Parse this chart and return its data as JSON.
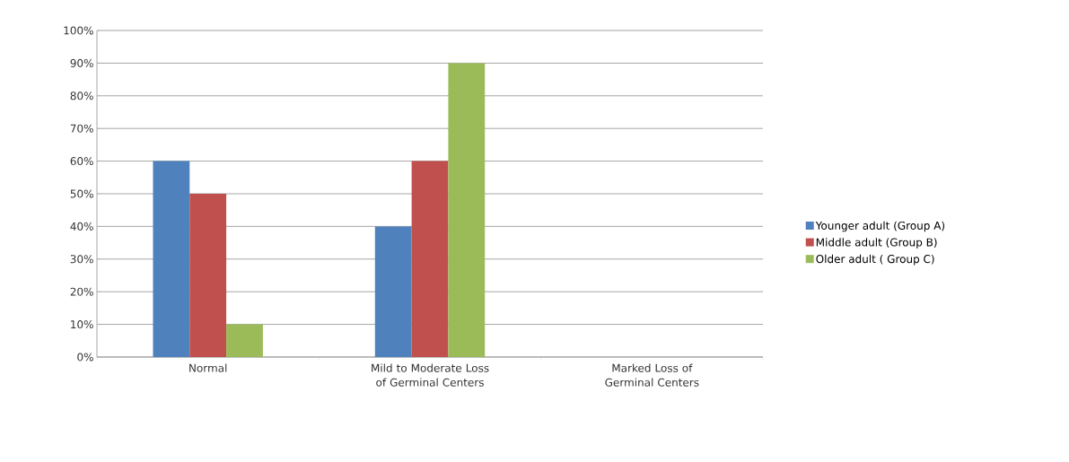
{
  "chart_data": {
    "type": "bar",
    "categories": [
      "Normal",
      "Mild to Moderate Loss of Germinal Centers",
      "Marked Loss of Germinal Centers"
    ],
    "series": [
      {
        "name": "Younger adult (Group A)",
        "color": "#4f81bd",
        "values": [
          60,
          40,
          0
        ]
      },
      {
        "name": "Middle adult (Group B)",
        "color": "#c0504d",
        "values": [
          50,
          60,
          0
        ]
      },
      {
        "name": "Older adult ( Group C)",
        "color": "#9bbb59",
        "values": [
          10,
          90,
          0
        ]
      }
    ],
    "ylim": [
      0,
      100
    ],
    "yticks": [
      {
        "value": 0,
        "label": "0%"
      },
      {
        "value": 10,
        "label": "10%"
      },
      {
        "value": 20,
        "label": "20%"
      },
      {
        "value": 30,
        "label": "30%"
      },
      {
        "value": 40,
        "label": "40%"
      },
      {
        "value": 50,
        "label": "50%"
      },
      {
        "value": 60,
        "label": "60%"
      },
      {
        "value": 70,
        "label": "70%"
      },
      {
        "value": 80,
        "label": "80%"
      },
      {
        "value": 90,
        "label": "90%"
      },
      {
        "value": 100,
        "label": "100%"
      }
    ],
    "grid": "y",
    "legend": "right"
  }
}
